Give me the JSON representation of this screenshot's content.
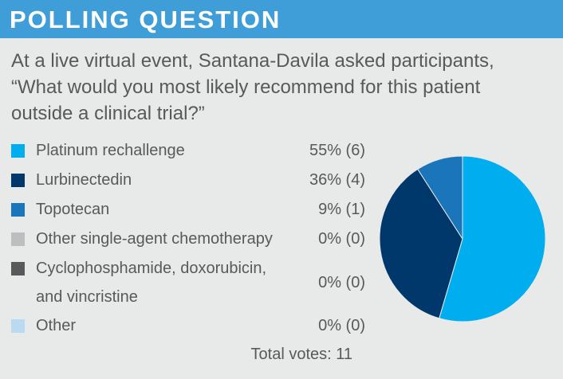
{
  "header": {
    "title": "POLLING QUESTION"
  },
  "question": {
    "lines": [
      "At a live virtual event, Santana-Davila asked participants,",
      "“What would you most likely recommend for this patient",
      "outside a clinical trial?”"
    ]
  },
  "chart_data": {
    "type": "pie",
    "slices": [
      {
        "label": "Platinum rechallenge",
        "label_lines": [
          "Platinum rechallenge"
        ],
        "percent": 55,
        "votes": 6,
        "value_text": "55% (6)",
        "color": "#00aeef"
      },
      {
        "label": "Lurbinectedin",
        "label_lines": [
          "Lurbinectedin"
        ],
        "percent": 36,
        "votes": 4,
        "value_text": "36% (4)",
        "color": "#00386b"
      },
      {
        "label": "Topotecan",
        "label_lines": [
          "Topotecan"
        ],
        "percent": 9,
        "votes": 1,
        "value_text": "9% (1)",
        "color": "#1a75bb"
      },
      {
        "label": "Other single-agent chemotherapy",
        "label_lines": [
          "Other single-agent chemotherapy"
        ],
        "percent": 0,
        "votes": 0,
        "value_text": "0% (0)",
        "color": "#bcbec0"
      },
      {
        "label": "Cyclophosphamide, doxorubicin, and vincristine",
        "label_lines": [
          "Cyclophosphamide, doxorubicin,",
          "and vincristine"
        ],
        "percent": 0,
        "votes": 0,
        "value_text": "0% (0)",
        "color": "#58595b"
      },
      {
        "label": "Other",
        "label_lines": [
          "Other"
        ],
        "percent": 0,
        "votes": 0,
        "value_text": "0% (0)",
        "color": "#b9daf0"
      }
    ],
    "total_votes": 11,
    "total_text": "Total votes: 11"
  }
}
